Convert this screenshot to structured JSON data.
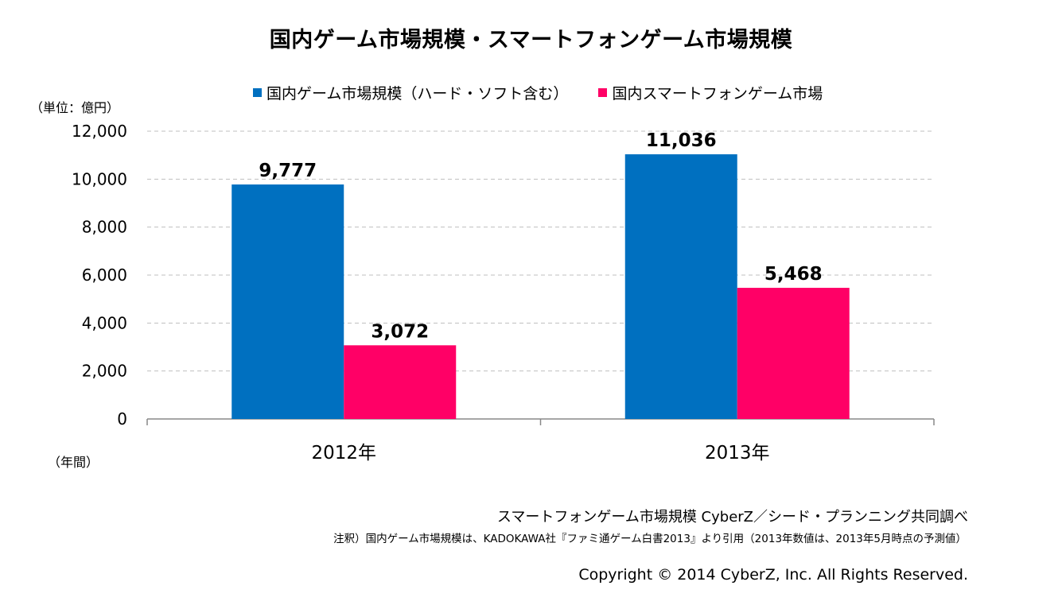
{
  "title": "国内ゲーム市場規模・スマートフォンゲーム市場規模",
  "unit_label": "（単位：億円）",
  "x_unit_label": "（年間）",
  "source": "スマートフォンゲーム市場規模  CyberZ／シード・プランニング共同調べ",
  "note": "注釈）国内ゲーム市場規模は、KADOKAWA社『ファミ通ゲーム白書2013』より引用（2013年数値は、2013年5月時点の予測値）",
  "copyright": "Copyright © 2014 CyberZ, Inc.  All Rights Reserved.",
  "legend": [
    {
      "label": "国内ゲーム市場規模（ハード・ソフト含む）",
      "color": "#0070C0"
    },
    {
      "label": "国内スマートフォンゲーム市場",
      "color": "#FF0066"
    }
  ],
  "chart_data": {
    "type": "bar",
    "title": "国内ゲーム市場規模・スマートフォンゲーム市場規模",
    "categories": [
      "2012年",
      "2013年"
    ],
    "series": [
      {
        "name": "国内ゲーム市場規模（ハード・ソフト含む）",
        "color": "#0070C0",
        "values": [
          9777,
          11036
        ],
        "labels": [
          "9,777",
          "11,036"
        ]
      },
      {
        "name": "国内スマートフォンゲーム市場",
        "color": "#FF0066",
        "values": [
          3072,
          5468
        ],
        "labels": [
          "3,072",
          "5,468"
        ]
      }
    ],
    "ylim": [
      0,
      12000
    ],
    "yticks": [
      0,
      2000,
      4000,
      6000,
      8000,
      10000,
      12000
    ],
    "ytick_labels": [
      "0",
      "2,000",
      "4,000",
      "6,000",
      "8,000",
      "10,000",
      "12,000"
    ],
    "ylabel": "（単位：億円）",
    "xlabel": "（年間）",
    "grid": true,
    "legend_position": "top"
  }
}
